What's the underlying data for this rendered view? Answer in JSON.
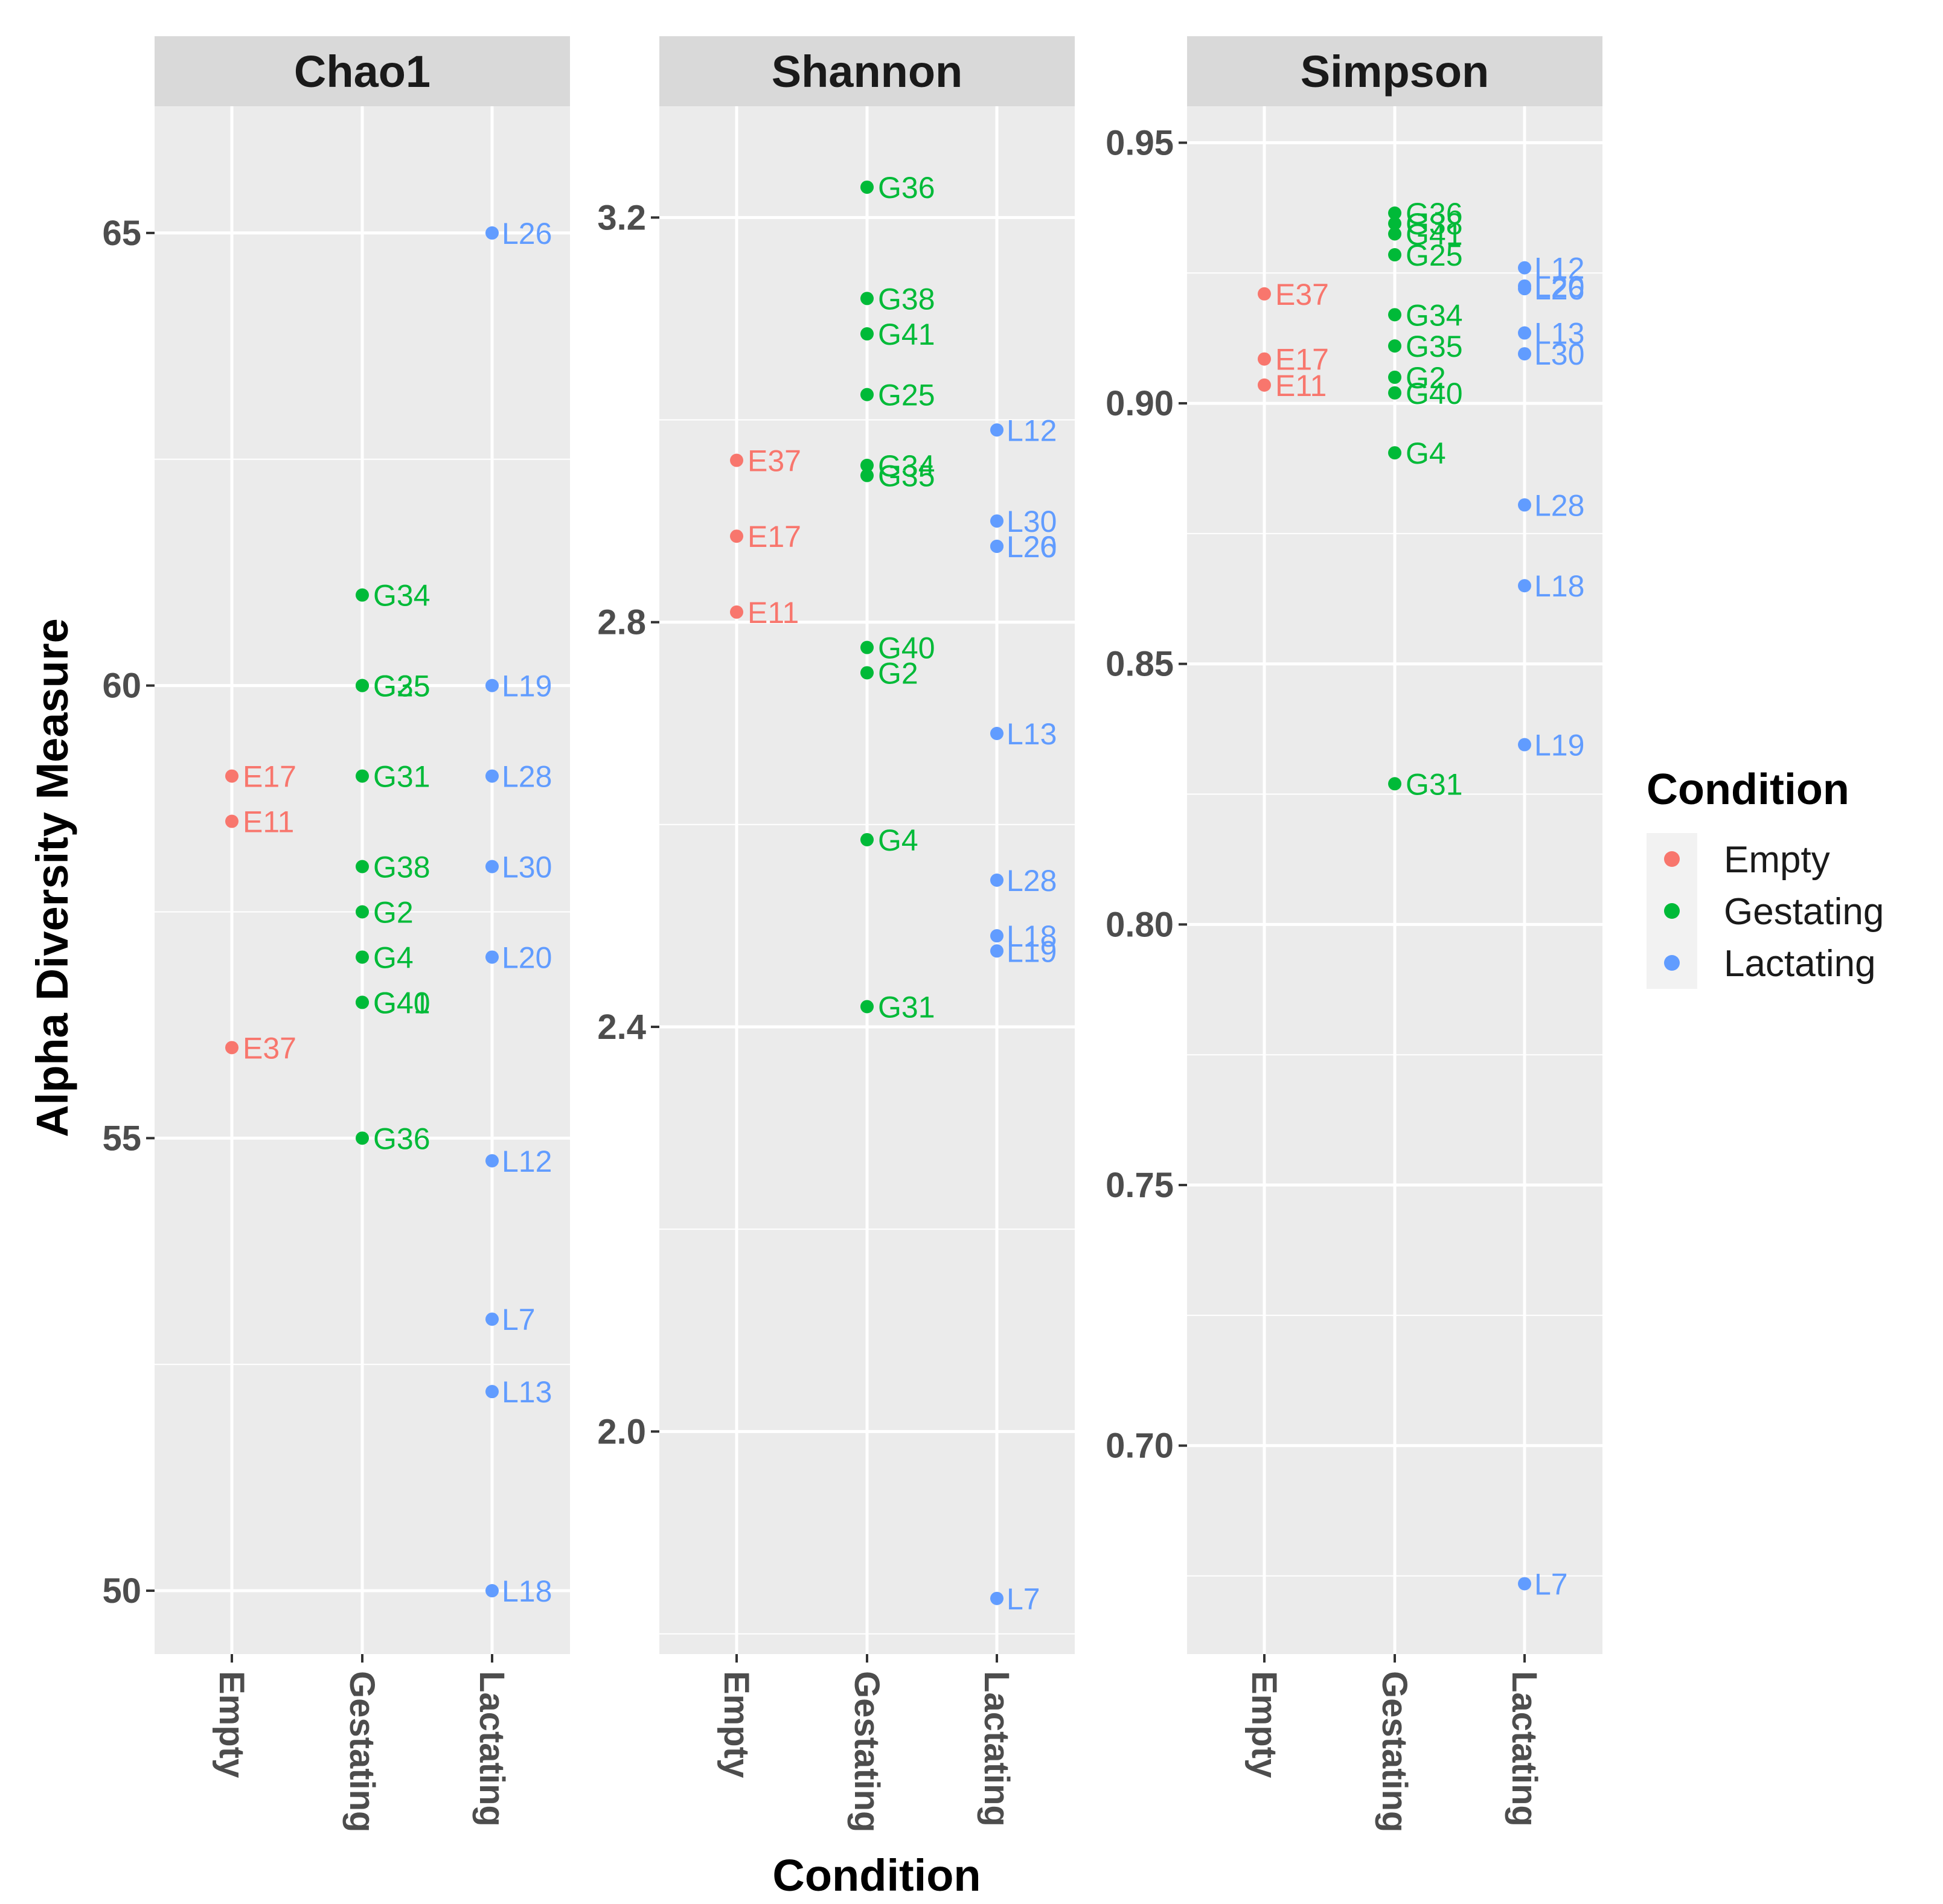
{
  "chart_data": {
    "type": "scatter",
    "ylabel": "Alpha Diversity Measure",
    "xlabel": "Condition",
    "categories": [
      "Empty",
      "Gestating",
      "Lactating"
    ],
    "legend": {
      "title": "Condition",
      "position": "right",
      "entries": [
        {
          "name": "Empty",
          "color": "#F8766D"
        },
        {
          "name": "Gestating",
          "color": "#00BA38"
        },
        {
          "name": "Lactating",
          "color": "#619CFF"
        }
      ]
    },
    "grid": true,
    "panels": [
      {
        "title": "Chao1",
        "ylim": [
          49.3,
          66.4
        ],
        "yticks": [
          50,
          55,
          60,
          65
        ],
        "ytick_labels": [
          "50",
          "55",
          "60",
          "65"
        ],
        "series": [
          {
            "name": "Empty",
            "points": [
              {
                "label": "E17",
                "y": 59.0
              },
              {
                "label": "E11",
                "y": 58.5
              },
              {
                "label": "E37",
                "y": 56.0
              }
            ]
          },
          {
            "name": "Gestating",
            "points": [
              {
                "label": "G34",
                "y": 61.0
              },
              {
                "label": "G25",
                "y": 60.0
              },
              {
                "label": "G35",
                "y": 60.0
              },
              {
                "label": "G31",
                "y": 59.0
              },
              {
                "label": "G38",
                "y": 58.0
              },
              {
                "label": "G2",
                "y": 57.5
              },
              {
                "label": "G4",
                "y": 57.0
              },
              {
                "label": "G41",
                "y": 56.5
              },
              {
                "label": "G40",
                "y": 56.5
              },
              {
                "label": "G36",
                "y": 55.0
              }
            ]
          },
          {
            "name": "Lactating",
            "points": [
              {
                "label": "L26",
                "y": 65.0
              },
              {
                "label": "L19",
                "y": 60.0
              },
              {
                "label": "L28",
                "y": 59.0
              },
              {
                "label": "L30",
                "y": 58.0
              },
              {
                "label": "L20",
                "y": 57.0
              },
              {
                "label": "L12",
                "y": 54.75
              },
              {
                "label": "L7",
                "y": 53.0
              },
              {
                "label": "L13",
                "y": 52.2
              },
              {
                "label": "L18",
                "y": 50.0
              }
            ]
          }
        ]
      },
      {
        "title": "Shannon",
        "ylim": [
          1.78,
          3.31
        ],
        "yticks": [
          2.0,
          2.4,
          2.8,
          3.2
        ],
        "ytick_labels": [
          "2.0",
          "2.4",
          "2.8",
          "3.2"
        ],
        "series": [
          {
            "name": "Empty",
            "points": [
              {
                "label": "E37",
                "y": 2.96
              },
              {
                "label": "E17",
                "y": 2.885
              },
              {
                "label": "E11",
                "y": 2.81
              }
            ]
          },
          {
            "name": "Gestating",
            "points": [
              {
                "label": "G36",
                "y": 3.23
              },
              {
                "label": "G38",
                "y": 3.12
              },
              {
                "label": "G41",
                "y": 3.085
              },
              {
                "label": "G25",
                "y": 3.025
              },
              {
                "label": "G34",
                "y": 2.955
              },
              {
                "label": "G35",
                "y": 2.945
              },
              {
                "label": "G40",
                "y": 2.775
              },
              {
                "label": "G2",
                "y": 2.75
              },
              {
                "label": "G4",
                "y": 2.585
              },
              {
                "label": "G31",
                "y": 2.42
              }
            ]
          },
          {
            "name": "Lactating",
            "points": [
              {
                "label": "L12",
                "y": 2.99
              },
              {
                "label": "L30",
                "y": 2.9
              },
              {
                "label": "L26",
                "y": 2.875
              },
              {
                "label": "L20",
                "y": 2.875
              },
              {
                "label": "L13",
                "y": 2.69
              },
              {
                "label": "L28",
                "y": 2.545
              },
              {
                "label": "L18",
                "y": 2.49
              },
              {
                "label": "L19",
                "y": 2.475
              },
              {
                "label": "L7",
                "y": 1.835
              }
            ]
          }
        ]
      },
      {
        "title": "Simpson",
        "ylim": [
          0.66,
          0.957
        ],
        "yticks": [
          0.7,
          0.75,
          0.8,
          0.85,
          0.9,
          0.95
        ],
        "ytick_labels": [
          "0.70",
          "0.75",
          "0.80",
          "0.85",
          "0.90",
          "0.95"
        ],
        "series": [
          {
            "name": "Empty",
            "points": [
              {
                "label": "E37",
                "y": 0.921
              },
              {
                "label": "E17",
                "y": 0.9085
              },
              {
                "label": "E11",
                "y": 0.9035
              }
            ]
          },
          {
            "name": "Gestating",
            "points": [
              {
                "label": "G36",
                "y": 0.9365
              },
              {
                "label": "G38",
                "y": 0.9345
              },
              {
                "label": "G41",
                "y": 0.9325
              },
              {
                "label": "G25",
                "y": 0.9285
              },
              {
                "label": "G34",
                "y": 0.917
              },
              {
                "label": "G35",
                "y": 0.911
              },
              {
                "label": "G2",
                "y": 0.905
              },
              {
                "label": "G40",
                "y": 0.902
              },
              {
                "label": "G4",
                "y": 0.8905
              },
              {
                "label": "G31",
                "y": 0.827
              }
            ]
          },
          {
            "name": "Lactating",
            "points": [
              {
                "label": "L12",
                "y": 0.926
              },
              {
                "label": "L20",
                "y": 0.9225
              },
              {
                "label": "L26",
                "y": 0.922
              },
              {
                "label": "L13",
                "y": 0.9135
              },
              {
                "label": "L30",
                "y": 0.9095
              },
              {
                "label": "L28",
                "y": 0.8805
              },
              {
                "label": "L18",
                "y": 0.865
              },
              {
                "label": "L19",
                "y": 0.8345
              },
              {
                "label": "L7",
                "y": 0.6735
              }
            ]
          }
        ]
      }
    ]
  }
}
